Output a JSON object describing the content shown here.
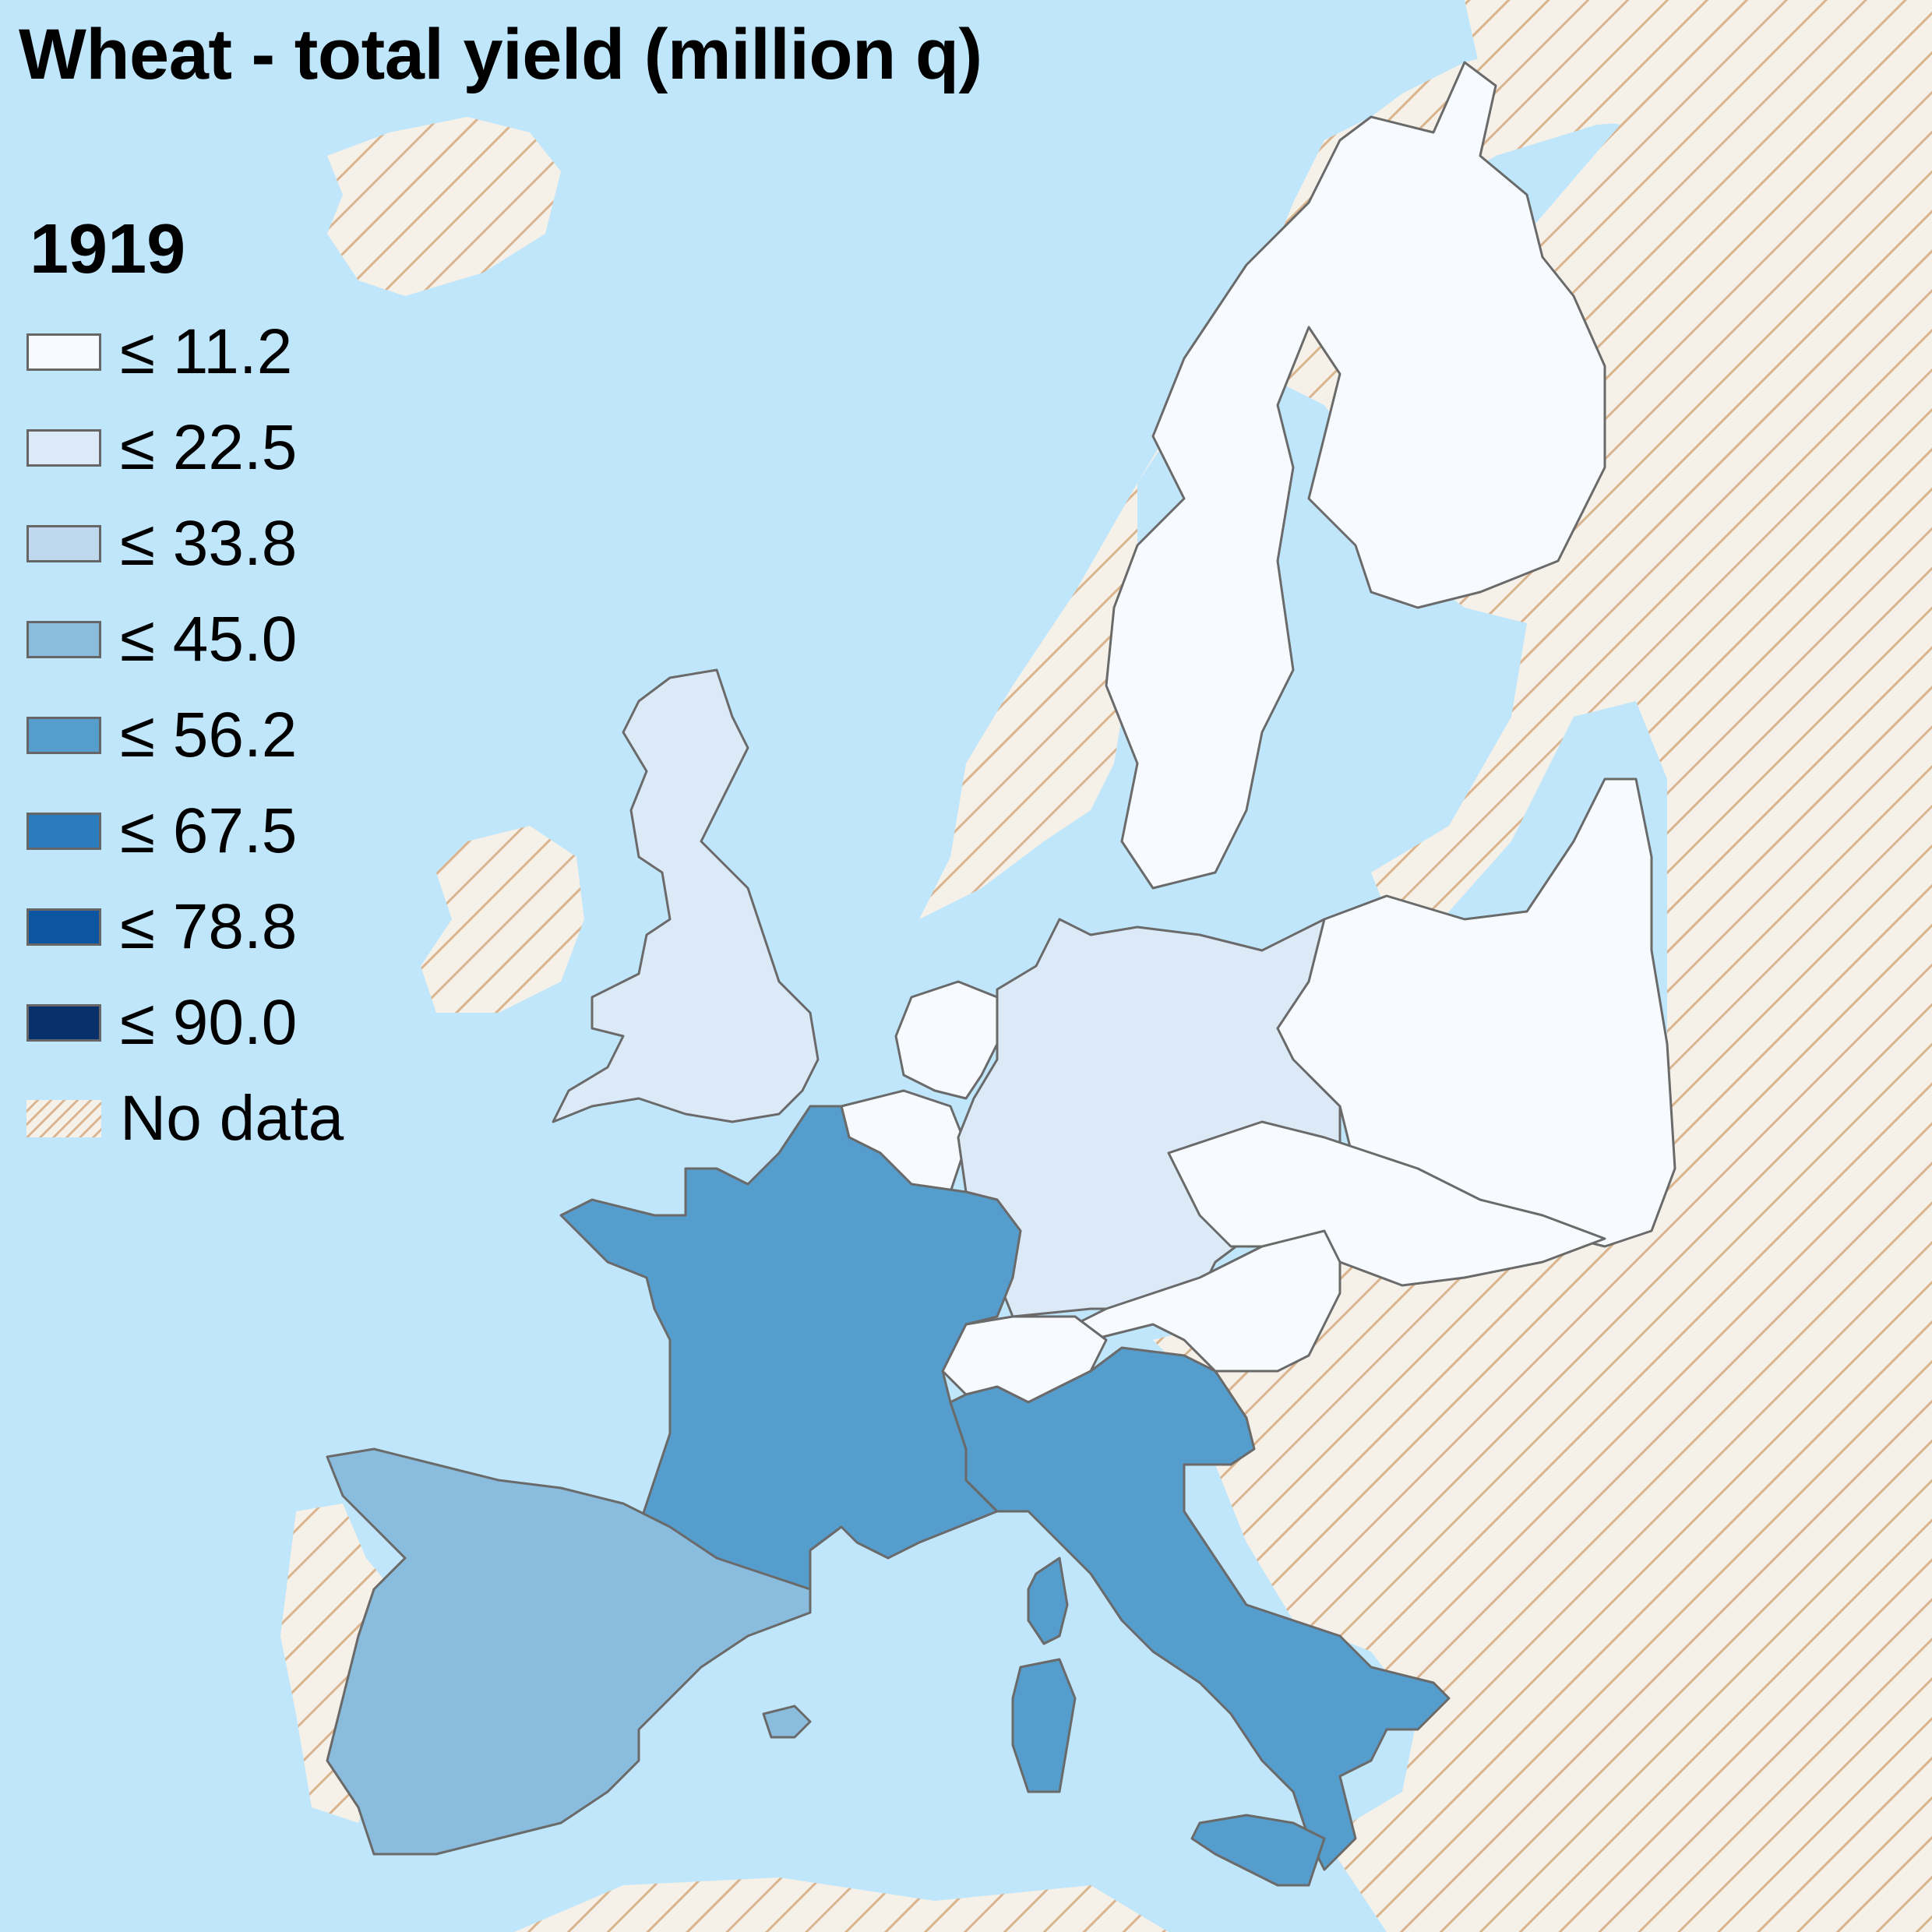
{
  "title": "Wheat - total yield (million q)",
  "year": "1919",
  "legend": {
    "items": [
      {
        "label": "≤ 11.2",
        "color": "#f7fbff"
      },
      {
        "label": "≤ 22.5",
        "color": "#dce9f6"
      },
      {
        "label": "≤ 33.8",
        "color": "#c0d8ed"
      },
      {
        "label": "≤ 45.0",
        "color": "#89bcdd"
      },
      {
        "label": "≤ 56.2",
        "color": "#559dcc"
      },
      {
        "label": "≤ 67.5",
        "color": "#2b7bbf"
      },
      {
        "label": "≤ 78.8",
        "color": "#0b55a2"
      },
      {
        "label": "≤ 90.0",
        "color": "#08306b"
      }
    ],
    "no_data_label": "No data"
  },
  "colors": {
    "sea": "#c0e6fb",
    "no_data_bg": "#f5f0e8",
    "no_data_hatch": "#d9b48e",
    "border": "#6a6a6a"
  }
}
